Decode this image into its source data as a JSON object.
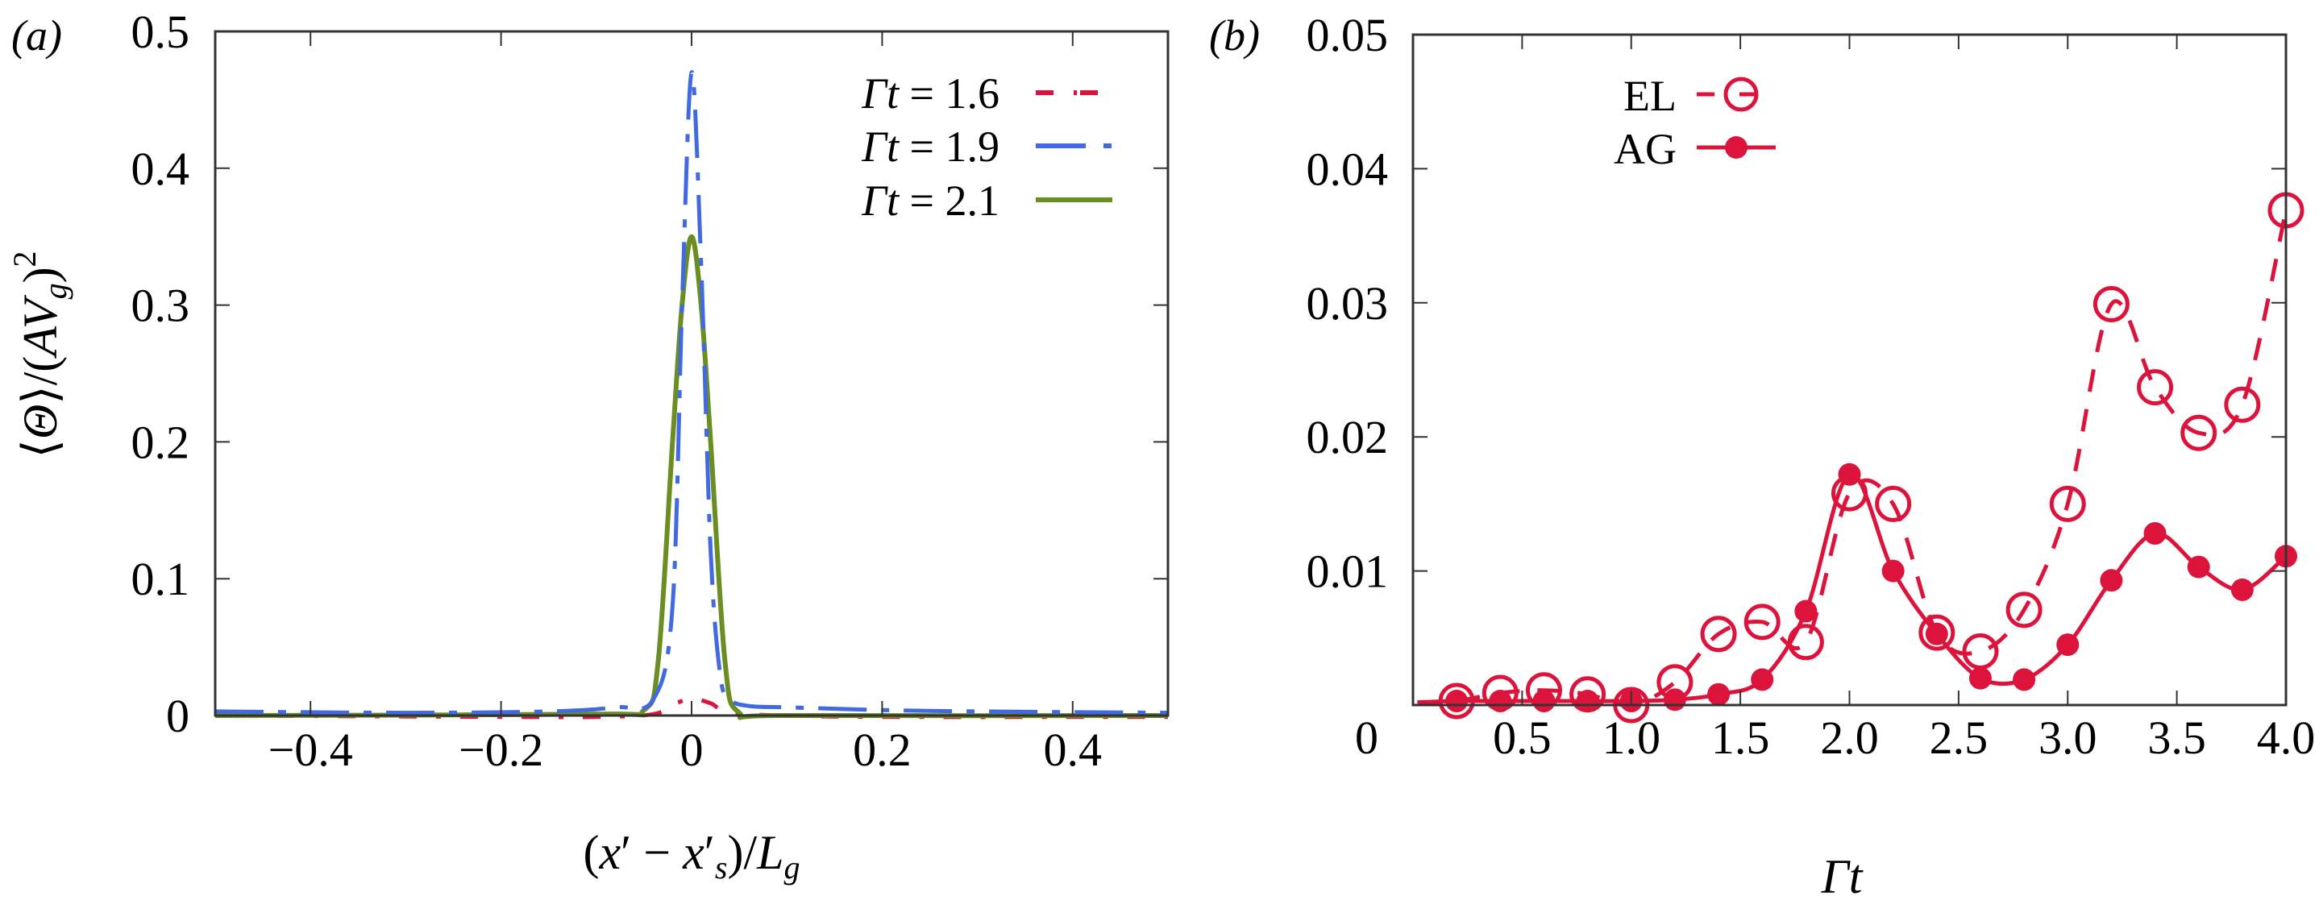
{
  "figure": {
    "panels": [
      {
        "id": "a",
        "panel_label": "(a)",
        "ylabel": "⟨Θ⟩/(AV_g)^2",
        "xlabel": "(x′ − x′_s)/L_g"
      },
      {
        "id": "b",
        "panel_label": "(b)",
        "ylabel": "",
        "xlabel": "Γt"
      }
    ]
  },
  "chart_data": [
    {
      "panel": "(a)",
      "type": "line",
      "title": "",
      "xlabel": "(x′ − x′_s)/L_g",
      "ylabel": "⟨Θ⟩/(AV_g)^2",
      "xlim": [
        -0.5,
        0.5
      ],
      "ylim": [
        0,
        0.5
      ],
      "xticks": [
        -0.4,
        -0.2,
        0,
        0.2,
        0.4
      ],
      "xtick_labels": [
        "−0.4",
        "−0.2",
        "0",
        "0.2",
        "0.4"
      ],
      "yticks": [
        0,
        0.1,
        0.2,
        0.3,
        0.4,
        0.5
      ],
      "ytick_labels": [
        "0",
        "0.1",
        "0.2",
        "0.3",
        "0.4",
        "0.5"
      ],
      "grid": false,
      "legend_position": "upper right",
      "series": [
        {
          "name": "Γt = 1.6",
          "color": "#DC143C",
          "style": "dash-dot (short)",
          "x": [
            -0.5,
            -0.2,
            -0.1,
            -0.04,
            -0.02,
            0.0,
            0.02,
            0.04,
            0.1,
            0.2,
            0.5
          ],
          "y": [
            0.0,
            -0.001,
            -0.001,
            0.001,
            0.008,
            0.012,
            0.009,
            0.002,
            0.0,
            -0.001,
            -0.001
          ]
        },
        {
          "name": "Γt = 1.9",
          "color": "#4169E1",
          "style": "dash-dot (long)",
          "x": [
            -0.5,
            -0.3,
            -0.15,
            -0.08,
            -0.04,
            -0.02,
            -0.01,
            0.0,
            0.01,
            0.02,
            0.03,
            0.04,
            0.06,
            0.1,
            0.2,
            0.3,
            0.5
          ],
          "y": [
            0.003,
            0.002,
            0.003,
            0.006,
            0.012,
            0.08,
            0.3,
            0.47,
            0.33,
            0.12,
            0.03,
            0.012,
            0.007,
            0.006,
            0.004,
            0.003,
            0.002
          ]
        },
        {
          "name": "Γt = 2.1",
          "color": "#6B8E23",
          "style": "solid",
          "x": [
            -0.5,
            -0.1,
            -0.05,
            -0.035,
            -0.02,
            -0.01,
            0.0,
            0.01,
            0.02,
            0.035,
            0.05,
            0.1,
            0.5
          ],
          "y": [
            0.0,
            0.001,
            0.004,
            0.04,
            0.2,
            0.3,
            0.35,
            0.3,
            0.2,
            0.04,
            0.002,
            0.0,
            0.0
          ]
        }
      ]
    },
    {
      "panel": "(b)",
      "type": "line",
      "title": "",
      "xlabel": "Γt",
      "ylabel": "",
      "xlim": [
        0,
        4.0
      ],
      "ylim": [
        0,
        0.05
      ],
      "xticks": [
        0,
        0.5,
        1.0,
        1.5,
        2.0,
        2.5,
        3.0,
        3.5,
        4.0
      ],
      "xtick_labels": [
        "0",
        "0.5",
        "1.0",
        "1.5",
        "2.0",
        "2.5",
        "3.0",
        "3.5",
        "4.0"
      ],
      "yticks": [
        0,
        0.01,
        0.02,
        0.03,
        0.04,
        0.05
      ],
      "ytick_labels": [
        "0",
        "0.01",
        "0.02",
        "0.03",
        "0.04",
        "0.05"
      ],
      "grid": false,
      "legend_position": "upper left",
      "x": [
        0.2,
        0.4,
        0.6,
        0.8,
        1.0,
        1.2,
        1.4,
        1.6,
        1.8,
        2.0,
        2.2,
        2.4,
        2.6,
        2.8,
        3.0,
        3.2,
        3.4,
        3.6,
        3.8,
        4.0
      ],
      "series": [
        {
          "name": "EL",
          "color": "#DC143C",
          "style": "dashed, open circles",
          "values": [
            0.0003,
            0.0009,
            0.0011,
            0.0008,
            0.0,
            0.0017,
            0.0053,
            0.0062,
            0.0047,
            0.0158,
            0.015,
            0.0054,
            0.004,
            0.0071,
            0.015,
            0.0299,
            0.0237,
            0.0203,
            0.0224,
            0.0369
          ]
        },
        {
          "name": "AG",
          "color": "#DC143C",
          "style": "solid, filled circles",
          "values": [
            0.0003,
            0.0003,
            0.0003,
            0.0003,
            0.0003,
            0.0004,
            0.0008,
            0.0019,
            0.007,
            0.0172,
            0.01,
            0.0053,
            0.002,
            0.0019,
            0.0045,
            0.0093,
            0.0128,
            0.0103,
            0.0086,
            0.0111
          ]
        }
      ]
    }
  ]
}
